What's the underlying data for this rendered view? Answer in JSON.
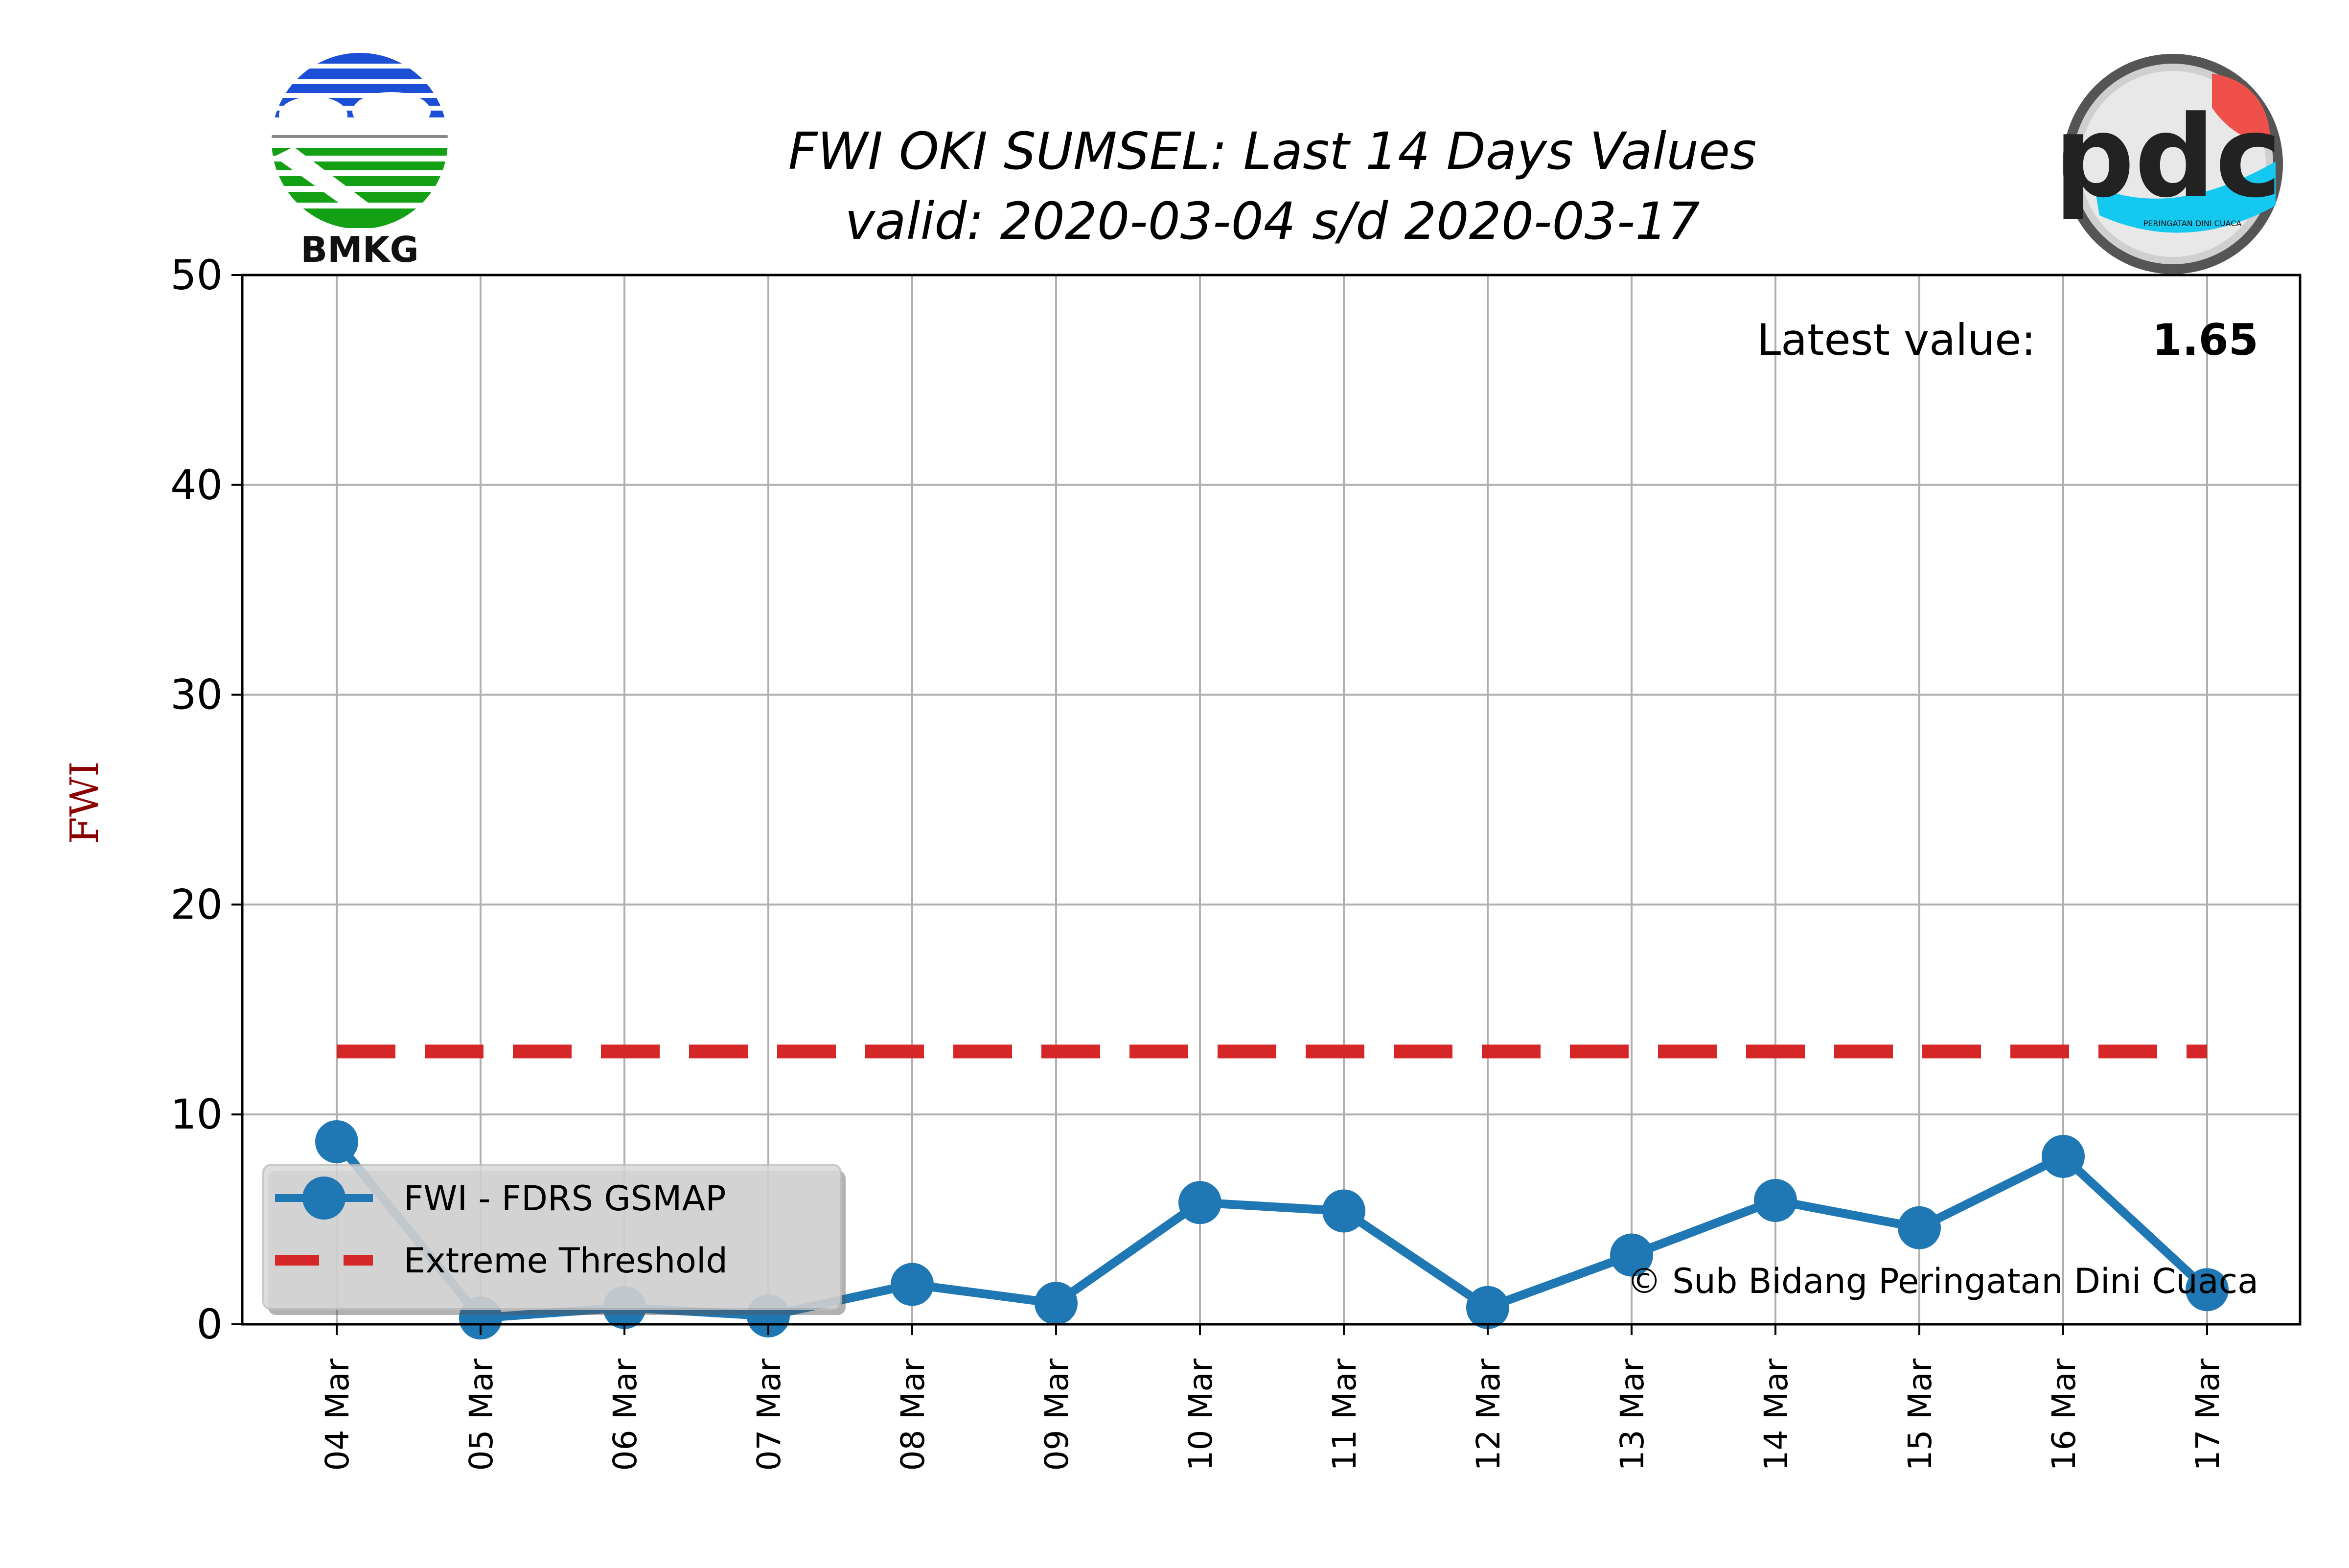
{
  "chart_data": {
    "type": "line",
    "title": "FWI OKI SUMSEL: Last 14 Days Values",
    "subtitle": "valid: 2020-03-04 s/d 2020-03-17",
    "ylabel": "FWI",
    "xlabel": "",
    "ylim": [
      0,
      50
    ],
    "yticks": [
      0,
      10,
      20,
      30,
      40,
      50
    ],
    "categories": [
      "04 Mar",
      "05 Mar",
      "06 Mar",
      "07 Mar",
      "08 Mar",
      "09 Mar",
      "10 Mar",
      "11 Mar",
      "12 Mar",
      "13 Mar",
      "14 Mar",
      "15 Mar",
      "16 Mar",
      "17 Mar"
    ],
    "series": [
      {
        "name": "FWI - FDRS GSMAP",
        "color": "#1f77b4",
        "marker": "circle",
        "values": [
          8.7,
          0.3,
          0.8,
          0.4,
          1.9,
          1.0,
          5.8,
          5.4,
          0.8,
          3.3,
          5.9,
          4.6,
          8.0,
          1.65
        ]
      },
      {
        "name": "Extreme Threshold",
        "color": "#d62728",
        "style": "dashed",
        "values": [
          13,
          13,
          13,
          13,
          13,
          13,
          13,
          13,
          13,
          13,
          13,
          13,
          13,
          13
        ]
      }
    ],
    "grid": true,
    "legend_position": "lower-left"
  },
  "annotations": {
    "latest_label": "Latest value:",
    "latest_value": "1.65",
    "credit": "© Sub Bidang Peringatan Dini Cuaca"
  },
  "logos": {
    "left": {
      "icon": "bmkg-logo",
      "text": "BMKG"
    },
    "right": {
      "icon": "pdc-logo",
      "text": "pdc",
      "caption": "PERINGATAN DINI CUACA"
    }
  }
}
